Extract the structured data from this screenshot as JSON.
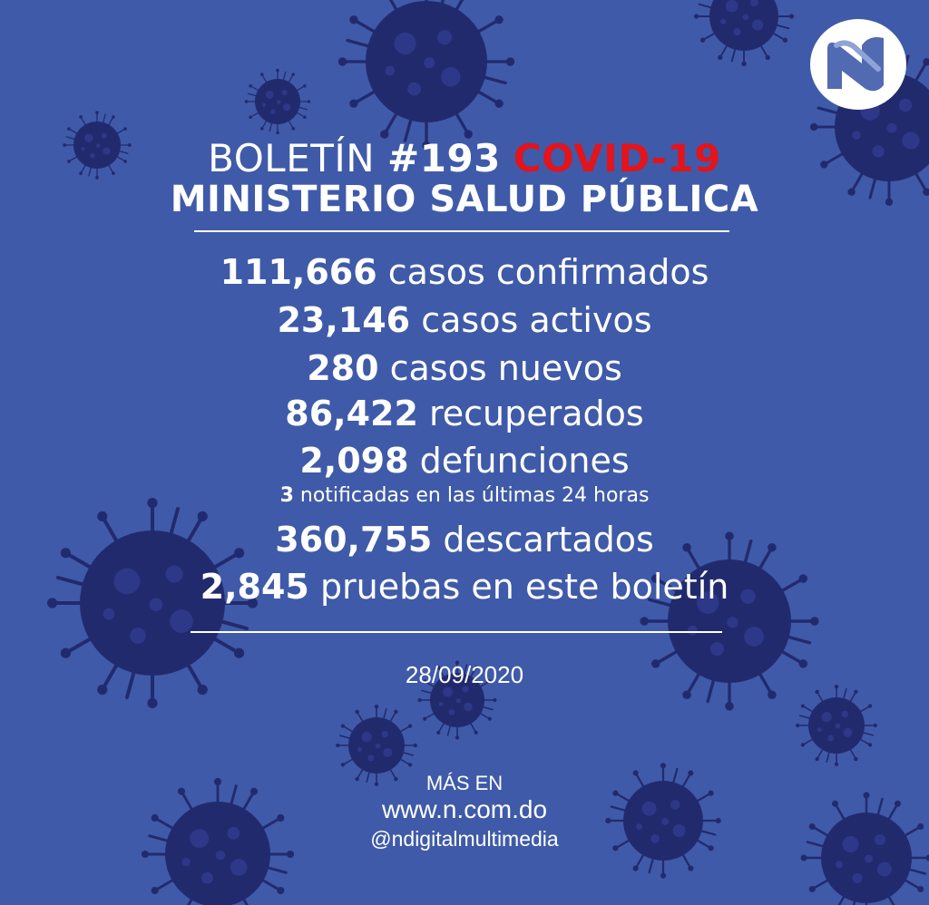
{
  "header": {
    "boletin_label": "BOLETÍN",
    "boletin_number": "#193",
    "covid_label": "COVID-19",
    "ministry": "MINISTERIO SALUD PÚBLICA"
  },
  "stats": [
    {
      "value": "111,666",
      "label": "casos confirmados"
    },
    {
      "value": "23,146",
      "label": "casos activos"
    },
    {
      "value": "280",
      "label": "casos nuevos"
    },
    {
      "value": "86,422",
      "label": "recuperados"
    },
    {
      "value": "2,098",
      "label": "defunciones"
    }
  ],
  "note": {
    "value": "3",
    "label": "notificadas en las últimas 24 horas"
  },
  "stats2": [
    {
      "value": "360,755",
      "label": "descartados"
    },
    {
      "value": "2,845",
      "label": "pruebas en este boletín"
    }
  ],
  "date": "28/09/2020",
  "footer": {
    "more_label": "MÁS EN",
    "website": "www.n.com.do",
    "handle": "@ndigitalmultimedia"
  },
  "colors": {
    "background": "#3f5aa8",
    "virus": "#222a6e",
    "accent_red": "#e3141b",
    "text": "#ffffff"
  },
  "icons": [
    "virus-icon",
    "n-digital-logo-icon"
  ]
}
